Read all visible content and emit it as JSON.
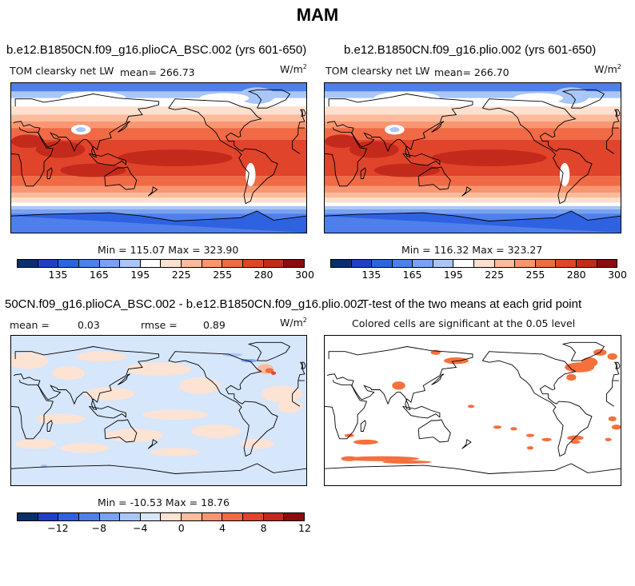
{
  "title": "MAM",
  "colors": {
    "abs_scale": [
      "#08306b",
      "#1e40c8",
      "#2e62e0",
      "#4f7fea",
      "#7aa2f2",
      "#a9c6f8",
      "#ffffff",
      "#fde0cf",
      "#fcbb9b",
      "#f89672",
      "#f06a45",
      "#e0442b",
      "#c42a1c",
      "#8c0c0c"
    ],
    "diff_scale": [
      "#08306b",
      "#1e40c8",
      "#2e62e0",
      "#4f7fea",
      "#7aa2f2",
      "#a9c6f8",
      "#d6e6fb",
      "#fde3d3",
      "#fcbb9b",
      "#f89672",
      "#f06a45",
      "#e0442b",
      "#c42a1c",
      "#8c0c0c"
    ],
    "significant": "#f4703c"
  },
  "panels": {
    "top_left": {
      "title": "b.e12.B1850CN.f09_g16.plioCA_BSC.002 (yrs 601-650)",
      "variable": "TOM clearsky net LW",
      "mean": "mean= 266.73",
      "units_base": "W/m",
      "units_exp": "2",
      "minmax": "Min = 115.07 Max = 323.90"
    },
    "top_right": {
      "title": "b.e12.B1850CN.f09_g16.plio.002 (yrs 601-650)",
      "variable": "TOM clearsky net LW",
      "mean": "mean= 266.70",
      "units_base": "W/m",
      "units_exp": "2",
      "minmax": "Min = 116.32 Max = 323.27"
    },
    "bottom_left": {
      "title": "50CN.f09_g16.plioCA_BSC.002 - b.e12.B1850CN.f09_g16.plio.002",
      "mean_label": "mean =",
      "mean_value": "0.03",
      "rmse_label": "rmse =",
      "rmse_value": "0.89",
      "units_base": "W/m",
      "units_exp": "2",
      "minmax": "Min = -10.53 Max = 18.76"
    },
    "bottom_right": {
      "title": "T-test of the two means at each grid point",
      "subtitle": "Colored cells are significant at the 0.05 level"
    }
  },
  "chart_data": [
    {
      "type": "heatmap",
      "title": "b.e12.B1850CN.f09_g16.plioCA_BSC.002 (yrs 601-650)",
      "variable": "TOM clearsky net LW",
      "units": "W/m^2",
      "mean": 266.73,
      "min": 115.07,
      "max": 323.9,
      "colorbar_ticks": [
        135,
        165,
        195,
        225,
        255,
        280,
        300
      ]
    },
    {
      "type": "heatmap",
      "title": "b.e12.B1850CN.f09_g16.plio.002 (yrs 601-650)",
      "variable": "TOM clearsky net LW",
      "units": "W/m^2",
      "mean": 266.7,
      "min": 116.32,
      "max": 323.27,
      "colorbar_ticks": [
        135,
        165,
        195,
        225,
        255,
        280,
        300
      ]
    },
    {
      "type": "heatmap",
      "title": "50CN.f09_g16.plioCA_BSC.002 - b.e12.B1850CN.f09_g16.plio.002",
      "units": "W/m^2",
      "mean": 0.03,
      "rmse": 0.89,
      "min": -10.53,
      "max": 18.76,
      "colorbar_ticks": [
        -12,
        -8,
        -4,
        0,
        4,
        8,
        12
      ]
    },
    {
      "type": "heatmap",
      "title": "T-test of the two means at each grid point",
      "subtitle": "Colored cells are significant at the 0.05 level"
    }
  ],
  "abs_ticks": [
    "135",
    "165",
    "195",
    "225",
    "255",
    "280",
    "300"
  ],
  "diff_ticks": [
    "−12",
    "−8",
    "−4",
    "0",
    "4",
    "8",
    "12"
  ]
}
